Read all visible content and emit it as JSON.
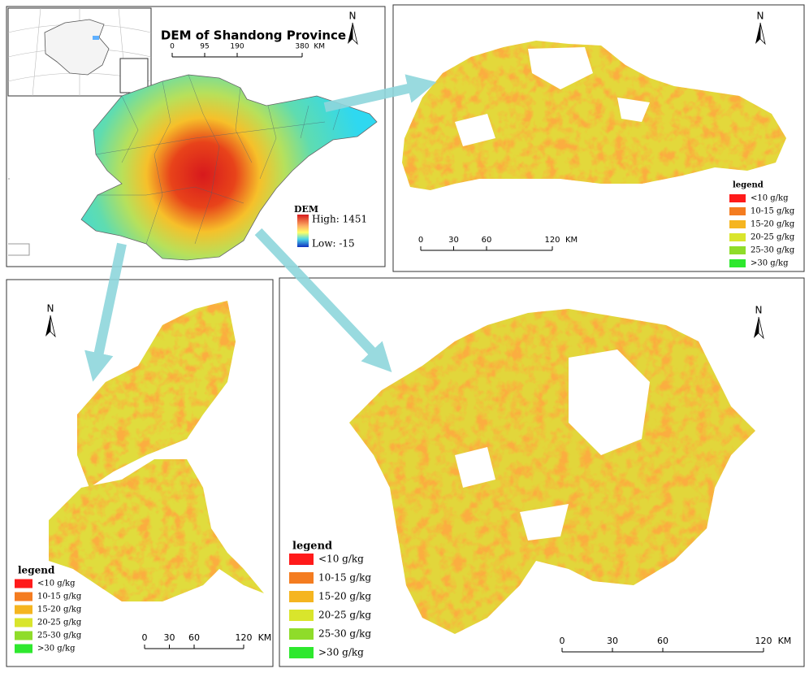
{
  "main_map": {
    "title": "DEM of Shandong Province",
    "north": "N",
    "scale_bar": {
      "ticks": [
        0,
        95,
        190,
        380
      ],
      "unit": "KM"
    },
    "dem_legend": {
      "title": "DEM",
      "high": "High: 1451",
      "low": "Low: -15"
    }
  },
  "panels": [
    {
      "north": "N",
      "legend_title": "legend",
      "legend": [
        {
          "label": "<10 g/kg",
          "color": "#ff1a1a"
        },
        {
          "label": "10-15 g/kg",
          "color": "#f47c20"
        },
        {
          "label": "15-20 g/kg",
          "color": "#f5b520"
        },
        {
          "label": "20-25 g/kg",
          "color": "#d9e52c"
        },
        {
          "label": "25-30 g/kg",
          "color": "#8fdc2a"
        },
        {
          "label": ">30 g/kg",
          "color": "#2ee82e"
        }
      ],
      "scale_bar": {
        "ticks": [
          0,
          30,
          60,
          120
        ],
        "unit": "KM"
      }
    },
    {
      "north": "N",
      "legend_title": "legend",
      "legend": [
        {
          "label": "<10 g/kg",
          "color": "#ff1a1a"
        },
        {
          "label": "10-15 g/kg",
          "color": "#f47c20"
        },
        {
          "label": "15-20 g/kg",
          "color": "#f5b520"
        },
        {
          "label": "20-25 g/kg",
          "color": "#d9e52c"
        },
        {
          "label": "25-30 g/kg",
          "color": "#8fdc2a"
        },
        {
          "label": ">30 g/kg",
          "color": "#2ee82e"
        }
      ],
      "scale_bar": {
        "ticks": [
          0,
          30,
          60,
          120
        ],
        "unit": "KM"
      }
    },
    {
      "north": "N",
      "legend_title": "legend",
      "legend": [
        {
          "label": "<10 g/kg",
          "color": "#ff1a1a"
        },
        {
          "label": "10-15 g/kg",
          "color": "#f47c20"
        },
        {
          "label": "15-20 g/kg",
          "color": "#f5b520"
        },
        {
          "label": "20-25 g/kg",
          "color": "#d9e52c"
        },
        {
          "label": "25-30 g/kg",
          "color": "#8fdc2a"
        },
        {
          "label": ">30 g/kg",
          "color": "#2ee82e"
        }
      ],
      "scale_bar": {
        "ticks": [
          0,
          30,
          60,
          120
        ],
        "unit": "KM"
      }
    }
  ]
}
